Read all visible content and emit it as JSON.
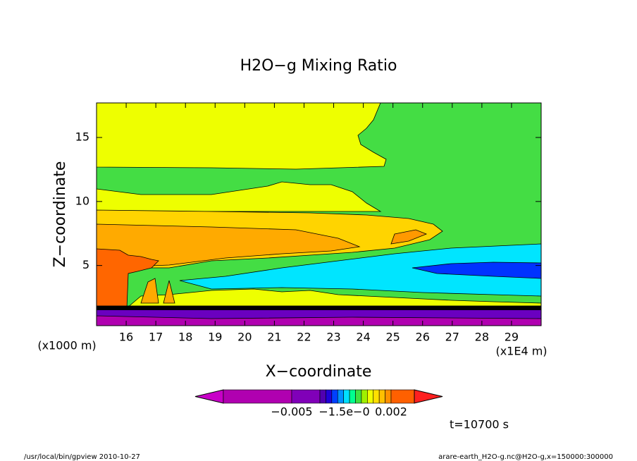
{
  "chart_data": {
    "type": "contour",
    "title": "H2O−g Mixing Ratio",
    "x_label": "X−coordinate",
    "y_label": "Z−coordinate",
    "x_unit_left": "(x1000 m)",
    "x_unit_right": "(x1E4 m)",
    "time_label": "t=10700 s",
    "footer_left": "/usr/local/bin/gpview   2010-10-27",
    "footer_right": "arare-earth_H2O-g.nc@H2O-g,x=150000:300000",
    "xlim": [
      15,
      30
    ],
    "xticks": [
      16,
      17,
      18,
      19,
      20,
      21,
      22,
      23,
      24,
      25,
      26,
      27,
      28,
      29
    ],
    "ylim": [
      0.3,
      17.7
    ],
    "yticks": [
      5,
      10,
      15
    ],
    "colorbar": {
      "colors": [
        "#c800c8",
        "#b000b0",
        "#8000b8",
        "#5000b0",
        "#2000d8",
        "#0040ff",
        "#0090ff",
        "#00e0ff",
        "#00ff90",
        "#40e040",
        "#a0f000",
        "#f0ff00",
        "#ffe000",
        "#ffc000",
        "#ff9000",
        "#ff6000",
        "#ff2020"
      ],
      "labels": [
        "−0.005",
        "−1.5e−0",
        "0.002"
      ]
    }
  }
}
